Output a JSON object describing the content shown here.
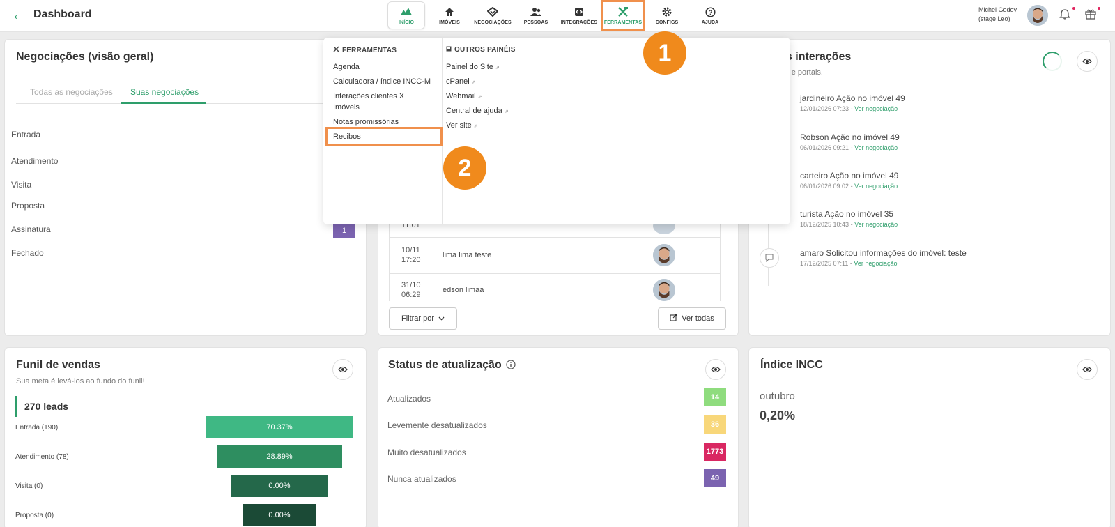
{
  "header": {
    "title": "Dashboard",
    "nav": [
      {
        "label": "INÍCIO"
      },
      {
        "label": "IMÓVEIS"
      },
      {
        "label": "NEGOCIAÇÕES"
      },
      {
        "label": "PESSOAS"
      },
      {
        "label": "INTEGRAÇÕES"
      },
      {
        "label": "FERRAMENTAS"
      },
      {
        "label": "CONFIGS"
      },
      {
        "label": "AJUDA"
      }
    ],
    "user_name": "Michel Godoy",
    "user_env": "(stage Leo)"
  },
  "dropdown": {
    "ferramentas_title": "FERRAMENTAS",
    "ferramentas_items": [
      "Agenda",
      "Calculadora / índice INCC-M",
      "Interações clientes X",
      "Imóveis",
      "Notas promissórias",
      "Recibos"
    ],
    "outros_title": "OUTROS PAINÉIS",
    "outros_items": [
      "Painel do Site",
      "cPanel",
      "Webmail",
      "Central de ajuda",
      "Ver site"
    ]
  },
  "steps": [
    "1",
    "2"
  ],
  "negociacoes": {
    "title": "Negociações (visão geral)",
    "tabs": [
      "Todas as negociações",
      "Suas negociações"
    ],
    "stages": [
      "Entrada",
      "Atendimento",
      "Visita",
      "Proposta",
      "Assinatura",
      "Fechado"
    ],
    "assinatura_count": "1"
  },
  "table": {
    "partial_time": "11:01",
    "rows": [
      {
        "date": "10/11",
        "time": "17:20",
        "name": "lima lima teste"
      },
      {
        "date": "31/10",
        "time": "06:29",
        "name": "edson limaa"
      }
    ],
    "filter_label": "Filtrar por",
    "view_all_label": "Ver todas"
  },
  "interacoes": {
    "title_visible": "as interações",
    "subtitle_visible": "api e portais.",
    "link_label": "Ver negociação",
    "items": [
      {
        "title": "jardineiro Ação no imóvel 49",
        "time": "12/01/2026 07:23"
      },
      {
        "title": "Robson Ação no imóvel 49",
        "time": "06/01/2026 09:21"
      },
      {
        "title": "carteiro Ação no imóvel 49",
        "time": "06/01/2026 09:02"
      },
      {
        "title": "turista Ação no imóvel 35",
        "time": "18/12/2025 10:43"
      },
      {
        "title": "amaro Solicitou informações do imóvel: teste",
        "time": "17/12/2025 07:11"
      }
    ]
  },
  "funil": {
    "title": "Funil de vendas",
    "subtitle": "Sua meta é levá-los ao fundo do funil!",
    "leads": "270 leads",
    "rows": [
      {
        "label": "Entrada (190)",
        "pct": "70.37%",
        "color": "#3fb884"
      },
      {
        "label": "Atendimento (78)",
        "pct": "28.89%",
        "color": "#2e8e60"
      },
      {
        "label": "Visita (0)",
        "pct": "0.00%",
        "color": "#24684a"
      },
      {
        "label": "Proposta (0)",
        "pct": "0.00%",
        "color": "#1b4a36"
      }
    ]
  },
  "status": {
    "title": "Status de atualização",
    "rows": [
      {
        "label": "Atualizados",
        "count": "14",
        "color": "#8fdc7e"
      },
      {
        "label": "Levemente desatualizados",
        "count": "36",
        "color": "#f8d77a"
      },
      {
        "label": "Muito desatualizados",
        "count": "1773",
        "color": "#d92862"
      },
      {
        "label": "Nunca atualizados",
        "count": "49",
        "color": "#7b63b0"
      }
    ]
  },
  "incc": {
    "title": "Índice INCC",
    "month": "outubro",
    "value": "0,20%"
  }
}
